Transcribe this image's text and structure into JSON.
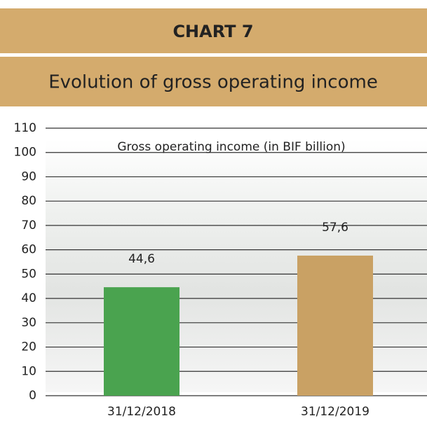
{
  "header": {
    "label": "CHART 7",
    "title": "Evolution of gross operating income"
  },
  "chart_data": {
    "type": "bar",
    "series_label": "Gross operating income (in BIF billion)",
    "categories": [
      "31/12/2018",
      "31/12/2019"
    ],
    "values": [
      44.6,
      57.6
    ],
    "value_labels": [
      "44,6",
      "57,6"
    ],
    "colors": [
      "#4aa34f",
      "#c9a164"
    ],
    "ylim": [
      0,
      110
    ],
    "yticks": [
      0,
      10,
      20,
      30,
      40,
      50,
      60,
      70,
      80,
      90,
      100,
      110
    ],
    "grid": true
  }
}
